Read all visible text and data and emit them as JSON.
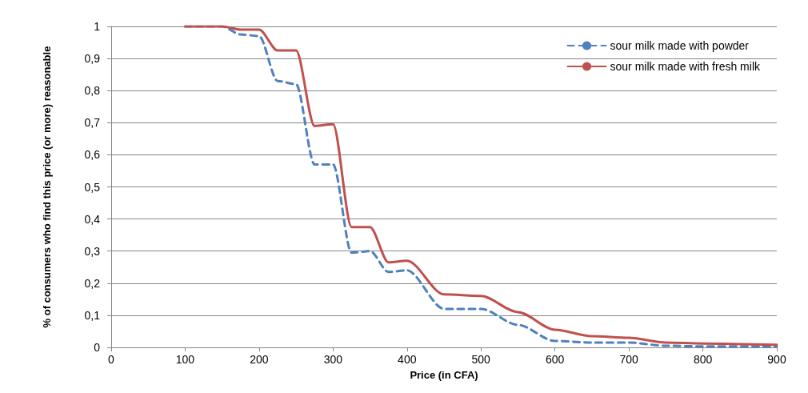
{
  "chart_data": {
    "type": "line",
    "xlabel": "Price (in CFA)",
    "ylabel": "% of consumers who find this price (or more) reasonable",
    "x": [
      100,
      150,
      175,
      200,
      225,
      250,
      275,
      300,
      325,
      350,
      375,
      400,
      450,
      500,
      550,
      600,
      650,
      700,
      750,
      800,
      900
    ],
    "series": [
      {
        "name": "sour milk made with powder",
        "color": "#4f81bd",
        "line_style": "dashed",
        "values": [
          1,
          1,
          0.975,
          0.97,
          0.83,
          0.82,
          0.57,
          0.57,
          0.295,
          0.3,
          0.235,
          0.24,
          0.12,
          0.12,
          0.07,
          0.02,
          0.015,
          0.015,
          0.005,
          0.003,
          0.003
        ]
      },
      {
        "name": "sour milk made with fresh milk",
        "color": "#c0504d",
        "line_style": "solid",
        "values": [
          1,
          1,
          0.99,
          0.99,
          0.925,
          0.925,
          0.69,
          0.695,
          0.375,
          0.375,
          0.265,
          0.27,
          0.165,
          0.16,
          0.11,
          0.055,
          0.035,
          0.03,
          0.015,
          0.012,
          0.008
        ]
      }
    ],
    "xlim": [
      0,
      900
    ],
    "xticks": [
      0,
      100,
      200,
      300,
      400,
      500,
      600,
      700,
      800,
      900
    ],
    "ylim": [
      0,
      1
    ],
    "yticks": [
      0,
      {
        "value": 0.1,
        "label": "0,1"
      },
      {
        "value": 0.2,
        "label": "0,2"
      },
      {
        "value": 0.3,
        "label": "0,3"
      },
      {
        "value": 0.4,
        "label": "0,4"
      },
      {
        "value": 0.5,
        "label": "0,5"
      },
      {
        "value": 0.6,
        "label": "0,6"
      },
      {
        "value": 0.7,
        "label": "0,7"
      },
      {
        "value": 0.8,
        "label": "0,8"
      },
      {
        "value": 0.9,
        "label": "0,9"
      },
      1
    ],
    "grid": "y",
    "legend": "top right",
    "marker": "none"
  }
}
